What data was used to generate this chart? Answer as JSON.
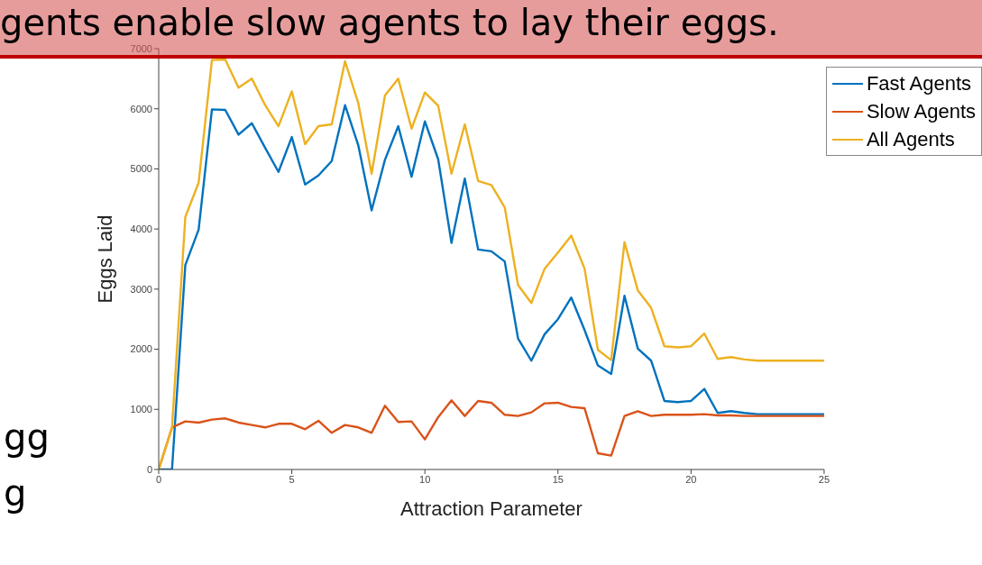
{
  "chart_data": {
    "type": "line",
    "title": "gents enable slow agents to lay their eggs.",
    "xlabel": "Attraction Parameter",
    "ylabel": "Eggs Laid",
    "annotations": [
      "gg",
      "g"
    ],
    "x": [
      0,
      0.5,
      1,
      1.5,
      2,
      2.5,
      3,
      3.5,
      4,
      4.5,
      5,
      5.5,
      6,
      6.5,
      7,
      7.5,
      8,
      8.5,
      9,
      9.5,
      10,
      10.5,
      11,
      11.5,
      12,
      12.5,
      13,
      13.5,
      14,
      14.5,
      15,
      15.5,
      16,
      16.5,
      17,
      17.5,
      18,
      18.5,
      19,
      19.5,
      20,
      20.5,
      21,
      21.5,
      22,
      22.5,
      23,
      23.5,
      24,
      24.5,
      25
    ],
    "series": [
      {
        "name": "Fast Agents",
        "color": "#0072bd",
        "values": [
          0,
          0,
          3400,
          3990,
          5990,
          5980,
          5570,
          5760,
          5350,
          4950,
          5530,
          4740,
          4890,
          5130,
          6060,
          5390,
          4310,
          5150,
          5710,
          4870,
          5790,
          5160,
          3770,
          4840,
          3660,
          3630,
          3460,
          2180,
          1810,
          2250,
          2500,
          2860,
          2320,
          1730,
          1590,
          2890,
          2010,
          1810,
          1140,
          1120,
          1140,
          1340,
          940,
          970,
          940,
          920,
          920,
          920,
          920,
          920,
          920
        ]
      },
      {
        "name": "Slow Agents",
        "color": "#d95319",
        "values": [
          0,
          700,
          800,
          780,
          830,
          850,
          780,
          740,
          700,
          760,
          760,
          670,
          810,
          610,
          740,
          700,
          610,
          1060,
          790,
          800,
          500,
          870,
          1150,
          890,
          1140,
          1110,
          910,
          890,
          950,
          1100,
          1110,
          1040,
          1020,
          270,
          230,
          890,
          970,
          890,
          910,
          910,
          910,
          920,
          900,
          900,
          890,
          890,
          890,
          890,
          890,
          890,
          890
        ]
      },
      {
        "name": "All Agents",
        "color": "#edb120",
        "values": [
          0,
          700,
          4200,
          4770,
          6810,
          6820,
          6350,
          6500,
          6060,
          5710,
          6290,
          5410,
          5710,
          5740,
          6790,
          6090,
          4920,
          6220,
          6500,
          5670,
          6270,
          6050,
          4920,
          5740,
          4800,
          4730,
          4360,
          3070,
          2770,
          3340,
          3610,
          3890,
          3340,
          1990,
          1820,
          3780,
          2980,
          2690,
          2050,
          2030,
          2050,
          2260,
          1840,
          1870,
          1830,
          1810,
          1810,
          1810,
          1810,
          1810,
          1810
        ]
      }
    ],
    "xlim": [
      0,
      25
    ],
    "xticks": [
      0,
      5,
      10,
      15,
      20,
      25
    ],
    "ylim": [
      0,
      7000
    ],
    "yticks": [
      0,
      1000,
      2000,
      3000,
      4000,
      5000,
      6000,
      7000
    ],
    "grid": false,
    "legend": "top right",
    "marker": "none",
    "line_style": "solid"
  }
}
